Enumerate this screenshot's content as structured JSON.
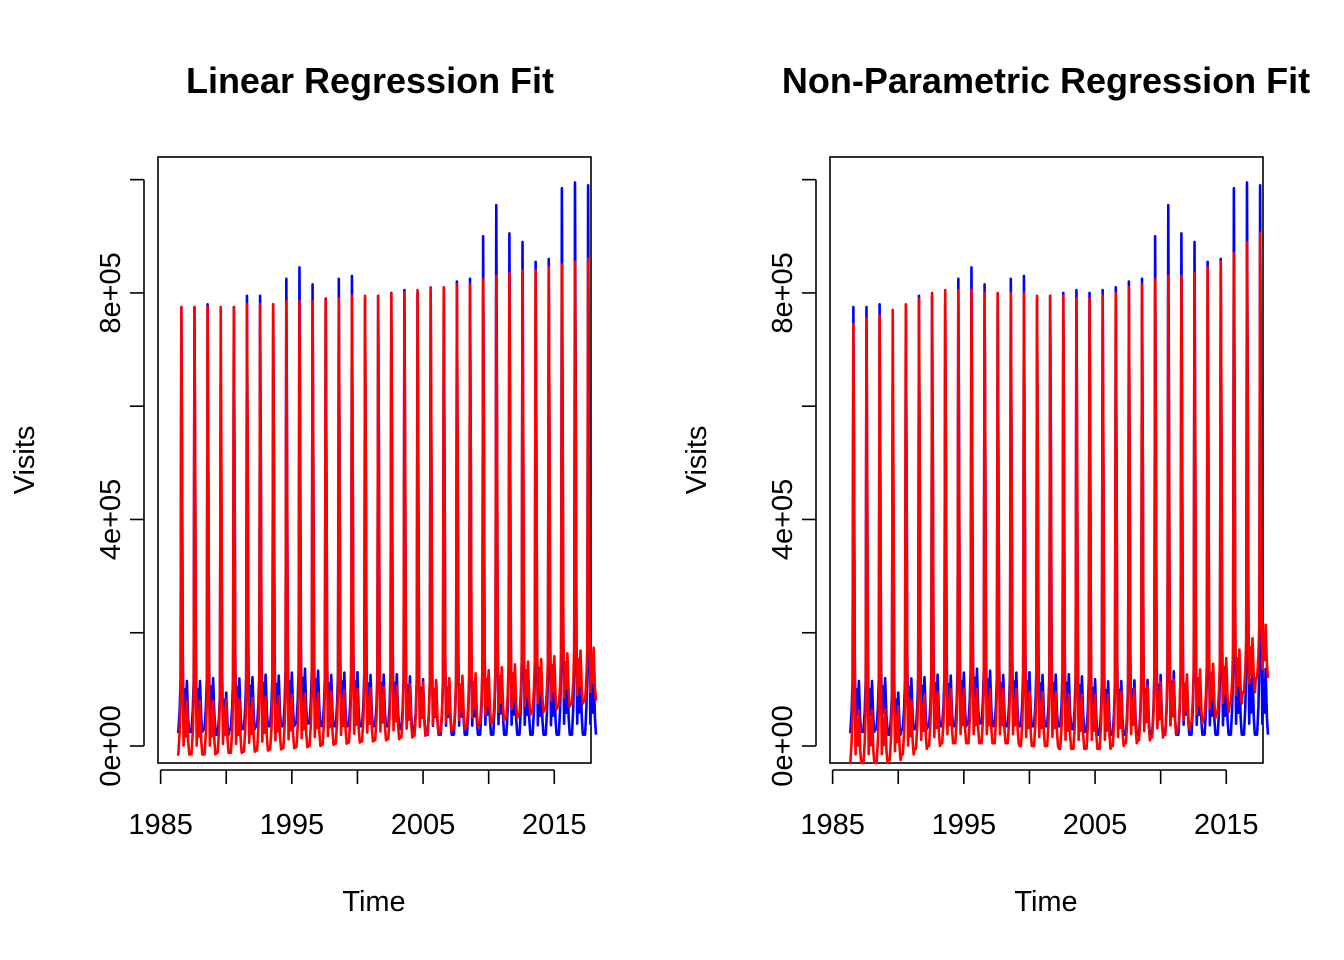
{
  "colors": {
    "observed": "#0000ff",
    "fitted": "#ff0000",
    "axis": "#000000"
  },
  "chart_data": [
    {
      "type": "line",
      "title": "Linear Regression Fit",
      "xlabel": "Time",
      "ylabel": "Visits",
      "xlim": [
        1984.8,
        2017.8
      ],
      "ylim": [
        -30000,
        1040000
      ],
      "xticks": [
        1985,
        1990,
        1995,
        2000,
        2005,
        2010,
        2015
      ],
      "xtick_labels": [
        "1985",
        "",
        "1995",
        "",
        "2005",
        "",
        "2015"
      ],
      "yticks": [
        0,
        200000,
        400000,
        600000,
        800000,
        1000000
      ],
      "ytick_labels": [
        "0e+00",
        "",
        "4e+05",
        "",
        "8e+05",
        ""
      ],
      "series": [
        {
          "role": "observed",
          "color": "#0000ff",
          "x": [
            1986,
            1987,
            1988,
            1989,
            1990,
            1991,
            1992,
            1993,
            1994,
            1995,
            1996,
            1997,
            1998,
            1999,
            2000,
            2001,
            2002,
            2003,
            2004,
            2005,
            2006,
            2007,
            2008,
            2009,
            2010,
            2011,
            2012,
            2013,
            2014,
            2015,
            2016,
            2017
          ],
          "peak": [
            775000,
            775000,
            780000,
            640000,
            775000,
            795000,
            795000,
            780000,
            825000,
            845000,
            815000,
            790000,
            825000,
            830000,
            790000,
            795000,
            800000,
            805000,
            800000,
            805000,
            810000,
            820000,
            825000,
            900000,
            955000,
            905000,
            890000,
            855000,
            860000,
            985000,
            995000,
            990000
          ],
          "trough": [
            25000,
            25000,
            30000,
            20000,
            30000,
            30000,
            35000,
            35000,
            35000,
            40000,
            40000,
            35000,
            35000,
            35000,
            35000,
            35000,
            35000,
            30000,
            25000,
            20000,
            20000,
            20000,
            20000,
            20000,
            20000,
            20000,
            20000,
            20000,
            20000,
            20000,
            20000,
            20000
          ]
        },
        {
          "role": "fitted",
          "color": "#ff0000",
          "x": [
            1986,
            1987,
            1988,
            1989,
            1990,
            1991,
            1992,
            1993,
            1994,
            1995,
            1996,
            1997,
            1998,
            1999,
            2000,
            2001,
            2002,
            2003,
            2004,
            2005,
            2006,
            2007,
            2008,
            2009,
            2010,
            2011,
            2012,
            2013,
            2014,
            2015,
            2016,
            2017
          ],
          "peak": [
            775000,
            775000,
            775000,
            775000,
            775000,
            780000,
            780000,
            780000,
            785000,
            785000,
            785000,
            790000,
            790000,
            795000,
            795000,
            795000,
            800000,
            800000,
            805000,
            810000,
            810000,
            815000,
            815000,
            825000,
            830000,
            835000,
            840000,
            840000,
            845000,
            850000,
            855000,
            860000
          ],
          "trough": [
            -15000,
            -15000,
            -15000,
            -12000,
            -12000,
            -10000,
            -8000,
            -6000,
            -4000,
            -2000,
            0,
            2000,
            4000,
            6000,
            8000,
            10000,
            12000,
            15000,
            18000,
            22000,
            26000,
            30000,
            35000,
            40000,
            45000,
            50000,
            55000,
            60000,
            65000,
            70000,
            75000,
            80000
          ]
        }
      ]
    },
    {
      "type": "line",
      "title": "Non-Parametric Regression Fit",
      "xlabel": "Time",
      "ylabel": "Visits",
      "xlim": [
        1984.8,
        2017.8
      ],
      "ylim": [
        -30000,
        1040000
      ],
      "xticks": [
        1985,
        1990,
        1995,
        2000,
        2005,
        2010,
        2015
      ],
      "xtick_labels": [
        "1985",
        "",
        "1995",
        "",
        "2005",
        "",
        "2015"
      ],
      "yticks": [
        0,
        200000,
        400000,
        600000,
        800000,
        1000000
      ],
      "ytick_labels": [
        "0e+00",
        "",
        "4e+05",
        "",
        "8e+05",
        ""
      ],
      "series": [
        {
          "role": "observed",
          "color": "#0000ff",
          "x": [
            1986,
            1987,
            1988,
            1989,
            1990,
            1991,
            1992,
            1993,
            1994,
            1995,
            1996,
            1997,
            1998,
            1999,
            2000,
            2001,
            2002,
            2003,
            2004,
            2005,
            2006,
            2007,
            2008,
            2009,
            2010,
            2011,
            2012,
            2013,
            2014,
            2015,
            2016,
            2017
          ],
          "peak": [
            775000,
            775000,
            780000,
            640000,
            775000,
            795000,
            795000,
            780000,
            825000,
            845000,
            815000,
            790000,
            825000,
            830000,
            790000,
            795000,
            800000,
            805000,
            800000,
            805000,
            810000,
            820000,
            825000,
            900000,
            955000,
            905000,
            890000,
            855000,
            860000,
            985000,
            995000,
            990000
          ],
          "trough": [
            25000,
            25000,
            30000,
            20000,
            30000,
            30000,
            35000,
            35000,
            35000,
            40000,
            40000,
            35000,
            35000,
            35000,
            35000,
            35000,
            35000,
            30000,
            25000,
            20000,
            20000,
            20000,
            20000,
            20000,
            20000,
            20000,
            20000,
            20000,
            20000,
            20000,
            20000,
            20000
          ]
        },
        {
          "role": "fitted",
          "color": "#ff0000",
          "x": [
            1986,
            1987,
            1988,
            1989,
            1990,
            1991,
            1992,
            1993,
            1994,
            1995,
            1996,
            1997,
            1998,
            1999,
            2000,
            2001,
            2002,
            2003,
            2004,
            2005,
            2006,
            2007,
            2008,
            2009,
            2010,
            2011,
            2012,
            2013,
            2014,
            2015,
            2016,
            2017
          ],
          "peak": [
            745000,
            755000,
            760000,
            770000,
            780000,
            790000,
            800000,
            805000,
            805000,
            805000,
            800000,
            800000,
            800000,
            800000,
            795000,
            795000,
            795000,
            790000,
            790000,
            795000,
            800000,
            810000,
            815000,
            825000,
            830000,
            830000,
            835000,
            845000,
            855000,
            870000,
            890000,
            905000
          ],
          "trough": [
            -30000,
            -30000,
            -30000,
            -25000,
            -15000,
            -5000,
            0,
            5000,
            5000,
            5000,
            5000,
            5000,
            5000,
            0,
            0,
            0,
            -5000,
            -5000,
            -5000,
            -5000,
            0,
            5000,
            10000,
            15000,
            20000,
            30000,
            40000,
            50000,
            60000,
            75000,
            95000,
            120000
          ]
        }
      ]
    }
  ]
}
